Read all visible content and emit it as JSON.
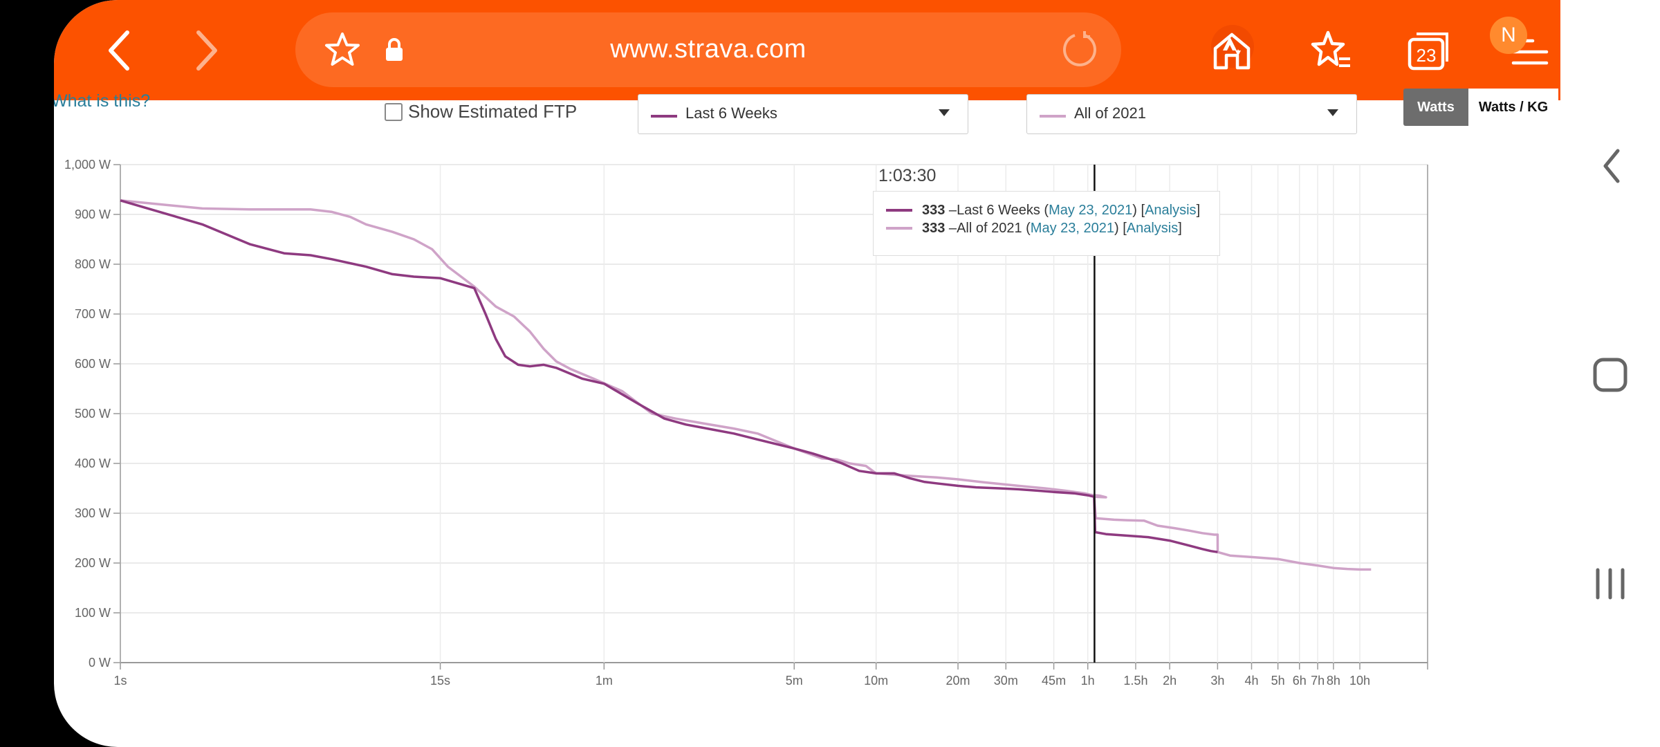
{
  "browser": {
    "url": "www.strava.com",
    "tab_count": "23",
    "profile_initial": "N",
    "accent": "#fc5200"
  },
  "controls": {
    "what_is_this": "What is this?",
    "show_ftp_label": "Show Estimated FTP",
    "show_ftp_checked": false,
    "select_primary": "Last 6 Weeks",
    "select_secondary": "All of 2021",
    "unit_watts": "Watts",
    "unit_wkg": "Watts / KG",
    "unit_selected": "Watts"
  },
  "tooltip": {
    "time": "1:03:30",
    "rows": [
      {
        "value": "333",
        "name": "Last 6 Weeks",
        "date": "May 23, 2021",
        "link": "Analysis",
        "color": "#8e3a80"
      },
      {
        "value": "333",
        "name": "All of 2021",
        "date": "May 23, 2021",
        "link": "Analysis",
        "color": "#cfa3c8"
      }
    ]
  },
  "chart_data": {
    "type": "line",
    "x_scale": "log",
    "xlabel": "",
    "ylabel": "",
    "ylim": [
      0,
      1000
    ],
    "y_ticks": [
      "0 W",
      "100 W",
      "200 W",
      "300 W",
      "400 W",
      "500 W",
      "600 W",
      "700 W",
      "800 W",
      "900 W",
      "1,000 W"
    ],
    "y_tick_values": [
      0,
      100,
      200,
      300,
      400,
      500,
      600,
      700,
      800,
      900,
      1000
    ],
    "x_ticks": [
      "1s",
      "15s",
      "1m",
      "5m",
      "10m",
      "20m",
      "30m",
      "45m",
      "1h",
      "1.5h",
      "2h",
      "3h",
      "4h",
      "5h",
      "6h",
      "7h",
      "8h",
      "10h"
    ],
    "x_tick_seconds": [
      1,
      15,
      60,
      300,
      600,
      1200,
      1800,
      2700,
      3600,
      5400,
      7200,
      10800,
      14400,
      18000,
      21600,
      25200,
      28800,
      36000
    ],
    "grid": true,
    "cursor_seconds": 3810,
    "series": [
      {
        "name": "Last 6 Weeks",
        "color": "#8e3a80",
        "points": [
          [
            1,
            928
          ],
          [
            2,
            880
          ],
          [
            3,
            840
          ],
          [
            4,
            822
          ],
          [
            5,
            818
          ],
          [
            6,
            810
          ],
          [
            8,
            795
          ],
          [
            10,
            780
          ],
          [
            12,
            775
          ],
          [
            15,
            772
          ],
          [
            20,
            752
          ],
          [
            22,
            700
          ],
          [
            24,
            650
          ],
          [
            26,
            615
          ],
          [
            29,
            598
          ],
          [
            32,
            595
          ],
          [
            36,
            598
          ],
          [
            40,
            592
          ],
          [
            50,
            570
          ],
          [
            60,
            560
          ],
          [
            80,
            520
          ],
          [
            100,
            490
          ],
          [
            120,
            478
          ],
          [
            150,
            468
          ],
          [
            180,
            460
          ],
          [
            220,
            448
          ],
          [
            300,
            430
          ],
          [
            350,
            420
          ],
          [
            400,
            410
          ],
          [
            450,
            400
          ],
          [
            520,
            385
          ],
          [
            600,
            380
          ],
          [
            700,
            380
          ],
          [
            800,
            370
          ],
          [
            900,
            363
          ],
          [
            1000,
            360
          ],
          [
            1200,
            355
          ],
          [
            1400,
            352
          ],
          [
            1700,
            350
          ],
          [
            2000,
            348
          ],
          [
            2400,
            345
          ],
          [
            2800,
            342
          ],
          [
            3200,
            340
          ],
          [
            3600,
            336
          ],
          [
            3800,
            333
          ],
          [
            3830,
            262
          ],
          [
            4200,
            258
          ],
          [
            5000,
            255
          ],
          [
            6000,
            252
          ],
          [
            7200,
            245
          ],
          [
            8500,
            235
          ],
          [
            9500,
            228
          ],
          [
            10200,
            224
          ],
          [
            10800,
            222
          ]
        ]
      },
      {
        "name": "All of 2021",
        "color": "#cfa3c8",
        "points": [
          [
            1,
            928
          ],
          [
            2,
            912
          ],
          [
            3,
            910
          ],
          [
            4,
            910
          ],
          [
            5,
            910
          ],
          [
            6,
            905
          ],
          [
            7,
            895
          ],
          [
            8,
            880
          ],
          [
            10,
            865
          ],
          [
            12,
            850
          ],
          [
            14,
            830
          ],
          [
            16,
            795
          ],
          [
            20,
            755
          ],
          [
            24,
            715
          ],
          [
            28,
            695
          ],
          [
            32,
            665
          ],
          [
            36,
            630
          ],
          [
            40,
            605
          ],
          [
            45,
            590
          ],
          [
            55,
            570
          ],
          [
            70,
            545
          ],
          [
            90,
            500
          ],
          [
            110,
            490
          ],
          [
            140,
            480
          ],
          [
            180,
            470
          ],
          [
            220,
            460
          ],
          [
            300,
            430
          ],
          [
            380,
            410
          ],
          [
            430,
            408
          ],
          [
            480,
            400
          ],
          [
            550,
            395
          ],
          [
            600,
            380
          ],
          [
            800,
            375
          ],
          [
            1000,
            372
          ],
          [
            1200,
            368
          ],
          [
            1500,
            362
          ],
          [
            2000,
            355
          ],
          [
            2500,
            350
          ],
          [
            3000,
            345
          ],
          [
            3500,
            340
          ],
          [
            3700,
            337
          ],
          [
            4000,
            335
          ],
          [
            4200,
            332
          ],
          [
            3800,
            333
          ],
          [
            3850,
            290
          ],
          [
            4500,
            287
          ],
          [
            5000,
            286
          ],
          [
            5800,
            285
          ],
          [
            6500,
            275
          ],
          [
            7500,
            270
          ],
          [
            8500,
            265
          ],
          [
            9500,
            260
          ],
          [
            10500,
            257
          ],
          [
            10800,
            257
          ],
          [
            10810,
            222
          ],
          [
            12000,
            215
          ],
          [
            14400,
            212
          ],
          [
            18000,
            208
          ],
          [
            21600,
            200
          ],
          [
            25200,
            195
          ],
          [
            28800,
            190
          ],
          [
            32400,
            188
          ],
          [
            36000,
            187
          ],
          [
            39600,
            187
          ]
        ]
      }
    ]
  }
}
